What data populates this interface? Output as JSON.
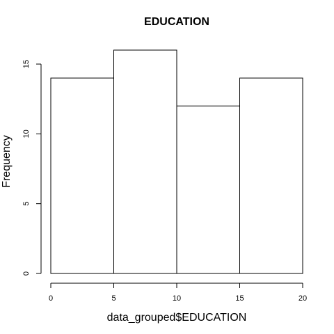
{
  "chart_data": {
    "type": "bar",
    "title": "EDUCATION",
    "xlabel": "data_grouped$EDUCATION",
    "ylabel": "Frequency",
    "bins": [
      {
        "from": 0,
        "to": 5,
        "count": 14
      },
      {
        "from": 5,
        "to": 10,
        "count": 16
      },
      {
        "from": 10,
        "to": 15,
        "count": 12
      },
      {
        "from": 15,
        "to": 20,
        "count": 14
      }
    ],
    "xlim": [
      0,
      20
    ],
    "ylim": [
      0,
      16
    ],
    "xticks": [
      0,
      5,
      10,
      15,
      20
    ],
    "yticks": [
      0,
      5,
      10,
      15
    ],
    "grid": false,
    "legend": "none",
    "colors": {
      "bar_fill": "#ffffff",
      "bar_stroke": "#000000"
    }
  }
}
